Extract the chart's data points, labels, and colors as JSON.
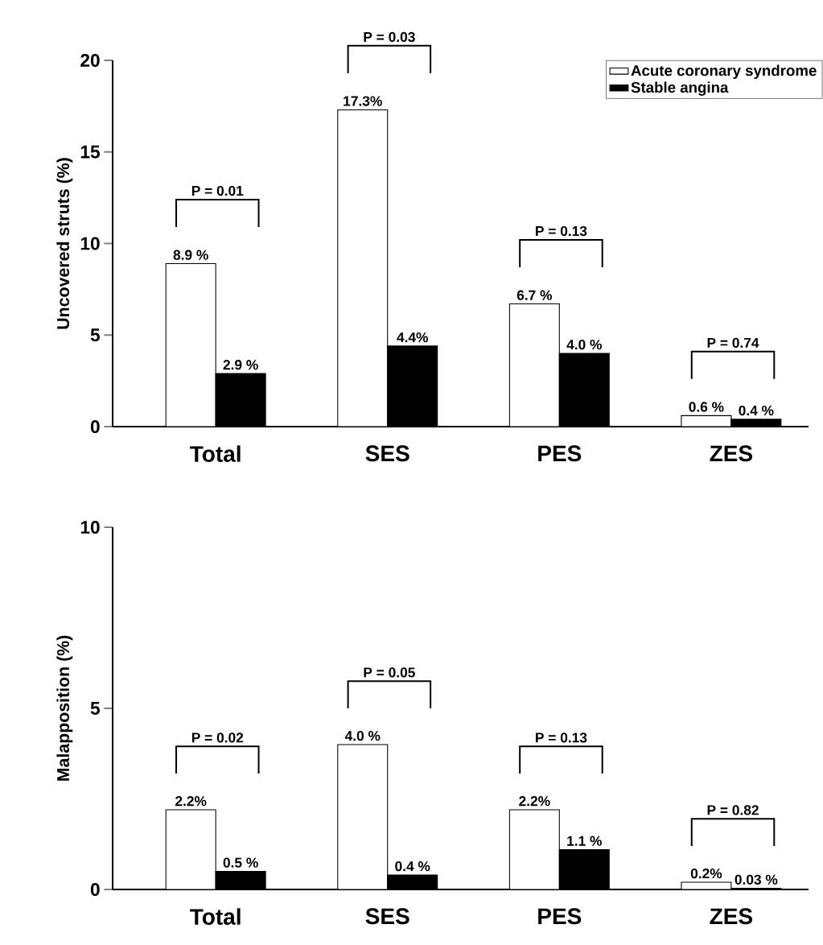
{
  "chart_data": [
    {
      "type": "bar",
      "ylabel": "Uncovered struts  (%)",
      "categories": [
        "Total",
        "SES",
        "PES",
        "ZES"
      ],
      "series": [
        {
          "name": "Acute coronary syndrome",
          "color": "#ffffff",
          "values": [
            8.9,
            17.3,
            6.7,
            0.6
          ],
          "value_labels": [
            "8.9 %",
            "17.3%",
            "6.7 %",
            "0.6 %"
          ]
        },
        {
          "name": "Stable angina",
          "color": "#000000",
          "values": [
            2.9,
            4.4,
            4.0,
            0.4
          ],
          "value_labels": [
            "2.9 %",
            "4.4%",
            "4.0 %",
            "0.4 %"
          ]
        }
      ],
      "ylim": [
        0,
        20
      ],
      "yticks": [
        0,
        5,
        10,
        15,
        20
      ],
      "legend": "top right",
      "annotations": [
        "P = 0.01",
        "P = 0.03",
        "P = 0.13",
        "P = 0.74"
      ]
    },
    {
      "type": "bar",
      "ylabel": "Malapposition (%)",
      "categories": [
        "Total",
        "SES",
        "PES",
        "ZES"
      ],
      "series": [
        {
          "color": "#ffffff",
          "values": [
            2.2,
            4.0,
            2.2,
            0.2
          ],
          "value_labels": [
            "2.2%",
            "4.0 %",
            "2.2%",
            "0.2%"
          ]
        },
        {
          "color": "#000000",
          "values": [
            0.5,
            0.4,
            1.1,
            0.03
          ],
          "value_labels": [
            "0.5 %",
            "0.4 %",
            "1.1 %",
            "0.03 %"
          ]
        }
      ],
      "ylim": [
        0,
        10
      ],
      "yticks": [
        0,
        5,
        10
      ],
      "legend": false,
      "annotations": [
        "P = 0.02",
        "P = 0.05",
        "P = 0.13",
        "P = 0.82"
      ]
    }
  ]
}
